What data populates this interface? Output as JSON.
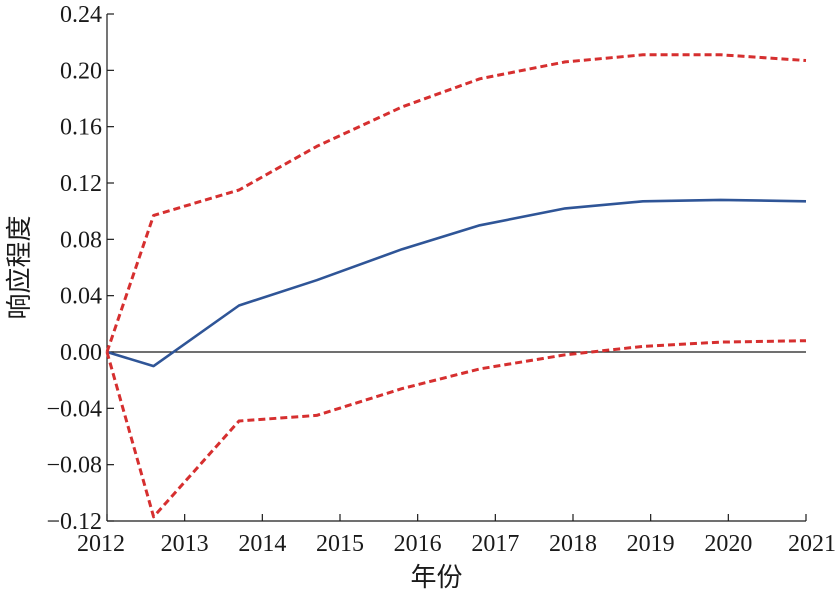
{
  "chart_data": {
    "type": "line",
    "title": "",
    "xlabel": "年份",
    "ylabel": "响应程度",
    "xlim": [
      2012,
      2021
    ],
    "ylim": [
      -0.12,
      0.24
    ],
    "x_ticks": [
      "2012",
      "2013",
      "2014",
      "2015",
      "2016",
      "2017",
      "2018",
      "2019",
      "2020",
      "2021"
    ],
    "y_ticks": [
      "-0.12",
      "-0.08",
      "-0.04",
      "0.00",
      "0.04",
      "0.08",
      "0.12",
      "0.16",
      "0.20",
      "0.24"
    ],
    "grid": false,
    "x": [
      2012,
      2012.6,
      2013.7,
      2014.7,
      2015.8,
      2016.8,
      2017.9,
      2018.9,
      2019.9,
      2021
    ],
    "series": [
      {
        "role": "response",
        "color": "#2f5597",
        "line_style": "solid",
        "values": [
          0.0,
          -0.01,
          0.033,
          0.051,
          0.073,
          0.09,
          0.102,
          0.107,
          0.108,
          0.107
        ]
      },
      {
        "role": "upper-bound",
        "color": "#d62f2f",
        "line_style": "dashed",
        "values": [
          0.0,
          0.097,
          0.115,
          0.146,
          0.174,
          0.194,
          0.206,
          0.211,
          0.211,
          0.207
        ]
      },
      {
        "role": "lower-bound",
        "color": "#d62f2f",
        "line_style": "dashed",
        "values": [
          0.0,
          -0.117,
          -0.049,
          -0.045,
          -0.026,
          -0.012,
          -0.002,
          0.004,
          0.007,
          0.008
        ]
      }
    ],
    "zero_line": true
  }
}
